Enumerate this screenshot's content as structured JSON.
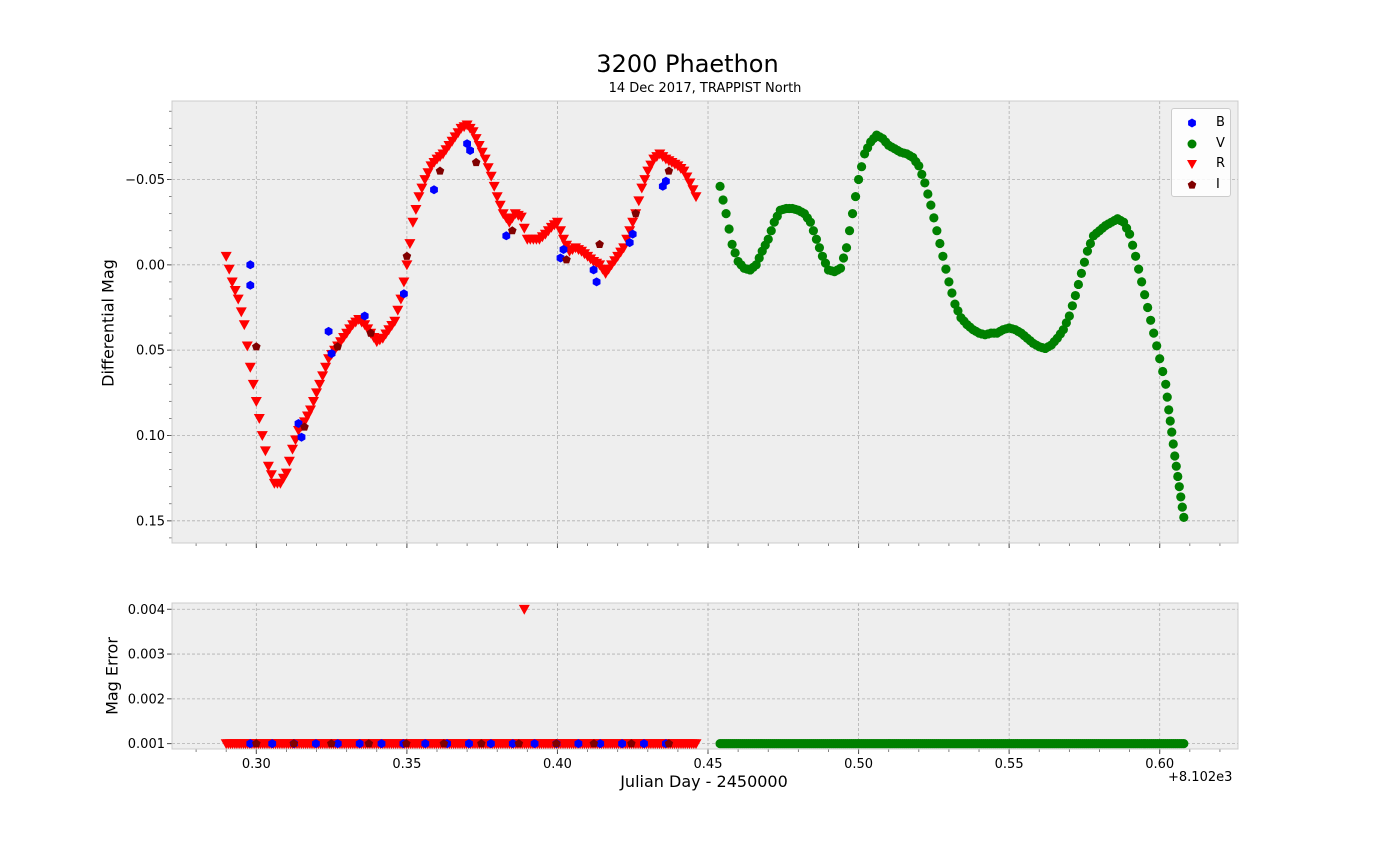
{
  "figure": {
    "title": "3200 Phaethon",
    "subtitle": "14 Dec 2017, TRAPPIST North",
    "xlabel": "Julian Day - 2450000",
    "x_offset_label": "+8.102e3"
  },
  "chart_data": [
    {
      "type": "scatter",
      "title": "3200 Phaethon",
      "subtitle": "14 Dec 2017, TRAPPIST North",
      "xlabel": "Julian Day - 2450000",
      "ylabel": "Differential  Mag",
      "x_offset": 8102,
      "xlim": [
        0.272,
        0.626
      ],
      "ylim": [
        0.163,
        -0.096
      ],
      "y_inverted": true,
      "xticks": [
        "0.30",
        "0.35",
        "0.40",
        "0.45",
        "0.50",
        "0.55",
        "0.60"
      ],
      "yticks": [
        "−0.05",
        "0.00",
        "0.05",
        "0.10",
        "0.15"
      ],
      "ytick_values": [
        -0.05,
        0.0,
        0.05,
        0.1,
        0.15
      ],
      "grid": true,
      "legend": "top-right",
      "series": [
        {
          "name": "B",
          "color": "#0000ff",
          "marker": "hexagon",
          "x": [
            0.298,
            0.298,
            0.314,
            0.315,
            0.324,
            0.325,
            0.336,
            0.349,
            0.359,
            0.37,
            0.371,
            0.383,
            0.401,
            0.402,
            0.412,
            0.413,
            0.424,
            0.425,
            0.435,
            0.436
          ],
          "y": [
            0.0,
            0.012,
            0.093,
            0.101,
            0.039,
            0.052,
            0.03,
            0.017,
            -0.044,
            -0.071,
            -0.067,
            -0.017,
            -0.004,
            -0.009,
            0.003,
            0.01,
            -0.013,
            -0.018,
            -0.046,
            -0.049
          ]
        },
        {
          "name": "V",
          "color": "#008000",
          "marker": "circle",
          "x": [
            0.454,
            0.456,
            0.458,
            0.46,
            0.462,
            0.464,
            0.466,
            0.468,
            0.47,
            0.472,
            0.474,
            0.476,
            0.478,
            0.48,
            0.482,
            0.484,
            0.486,
            0.488,
            0.49,
            0.492,
            0.494,
            0.496,
            0.498,
            0.5,
            0.502,
            0.504,
            0.506,
            0.508,
            0.51,
            0.512,
            0.514,
            0.516,
            0.518,
            0.52,
            0.522,
            0.524,
            0.526,
            0.528,
            0.53,
            0.532,
            0.534,
            0.536,
            0.538,
            0.54,
            0.542,
            0.544,
            0.546,
            0.548,
            0.55,
            0.552,
            0.554,
            0.556,
            0.558,
            0.56,
            0.562,
            0.564,
            0.566,
            0.568,
            0.57,
            0.572,
            0.574,
            0.576,
            0.578,
            0.58,
            0.582,
            0.584,
            0.586,
            0.588,
            0.59,
            0.592,
            0.594,
            0.596,
            0.598,
            0.6,
            0.602,
            0.603,
            0.604,
            0.605,
            0.606,
            0.607,
            0.608
          ],
          "y": [
            -0.046,
            -0.03,
            -0.012,
            -0.002,
            0.002,
            0.003,
            0.0,
            -0.008,
            -0.015,
            -0.025,
            -0.032,
            -0.033,
            -0.033,
            -0.032,
            -0.03,
            -0.025,
            -0.015,
            -0.005,
            0.003,
            0.004,
            0.002,
            -0.01,
            -0.03,
            -0.05,
            -0.065,
            -0.072,
            -0.076,
            -0.074,
            -0.07,
            -0.068,
            -0.066,
            -0.065,
            -0.063,
            -0.058,
            -0.048,
            -0.035,
            -0.02,
            -0.005,
            0.01,
            0.023,
            0.031,
            0.035,
            0.038,
            0.04,
            0.041,
            0.04,
            0.04,
            0.038,
            0.037,
            0.038,
            0.04,
            0.043,
            0.046,
            0.048,
            0.049,
            0.047,
            0.043,
            0.038,
            0.03,
            0.018,
            0.005,
            -0.008,
            -0.017,
            -0.02,
            -0.023,
            -0.025,
            -0.027,
            -0.025,
            -0.018,
            -0.005,
            0.01,
            0.025,
            0.04,
            0.055,
            0.07,
            0.085,
            0.098,
            0.112,
            0.124,
            0.136,
            0.148
          ]
        },
        {
          "name": "R",
          "color": "#ff0000",
          "marker": "triangle-down",
          "x": [
            0.29,
            0.292,
            0.294,
            0.296,
            0.298,
            0.3,
            0.302,
            0.304,
            0.306,
            0.308,
            0.31,
            0.312,
            0.314,
            0.316,
            0.318,
            0.32,
            0.322,
            0.324,
            0.326,
            0.328,
            0.33,
            0.332,
            0.334,
            0.336,
            0.338,
            0.34,
            0.342,
            0.344,
            0.346,
            0.348,
            0.35,
            0.352,
            0.354,
            0.356,
            0.358,
            0.36,
            0.362,
            0.364,
            0.366,
            0.368,
            0.37,
            0.372,
            0.374,
            0.376,
            0.378,
            0.38,
            0.382,
            0.384,
            0.386,
            0.388,
            0.39,
            0.392,
            0.394,
            0.396,
            0.398,
            0.4,
            0.402,
            0.404,
            0.406,
            0.408,
            0.41,
            0.412,
            0.414,
            0.416,
            0.418,
            0.42,
            0.422,
            0.424,
            0.426,
            0.428,
            0.43,
            0.432,
            0.434,
            0.436,
            0.438,
            0.44,
            0.442,
            0.444,
            0.446
          ],
          "y": [
            -0.005,
            0.01,
            0.02,
            0.035,
            0.06,
            0.08,
            0.1,
            0.118,
            0.128,
            0.128,
            0.122,
            0.108,
            0.097,
            0.092,
            0.085,
            0.075,
            0.065,
            0.055,
            0.05,
            0.045,
            0.04,
            0.035,
            0.032,
            0.035,
            0.04,
            0.045,
            0.043,
            0.038,
            0.033,
            0.02,
            0.0,
            -0.025,
            -0.04,
            -0.05,
            -0.058,
            -0.062,
            -0.065,
            -0.07,
            -0.075,
            -0.08,
            -0.082,
            -0.078,
            -0.07,
            -0.062,
            -0.052,
            -0.04,
            -0.03,
            -0.025,
            -0.03,
            -0.028,
            -0.015,
            -0.015,
            -0.015,
            -0.018,
            -0.022,
            -0.025,
            -0.015,
            -0.008,
            -0.01,
            -0.008,
            -0.005,
            -0.002,
            0.0,
            0.005,
            0.0,
            -0.005,
            -0.01,
            -0.02,
            -0.03,
            -0.045,
            -0.055,
            -0.062,
            -0.065,
            -0.062,
            -0.06,
            -0.058,
            -0.055,
            -0.048,
            -0.04
          ]
        },
        {
          "name": "I",
          "color": "#800000",
          "marker": "pentagon",
          "x": [
            0.3,
            0.316,
            0.327,
            0.338,
            0.35,
            0.361,
            0.373,
            0.385,
            0.403,
            0.414,
            0.426,
            0.437
          ],
          "y": [
            0.048,
            0.095,
            0.048,
            0.04,
            -0.005,
            -0.055,
            -0.06,
            -0.02,
            -0.003,
            -0.012,
            -0.03,
            -0.055
          ]
        }
      ]
    },
    {
      "type": "scatter",
      "xlabel": "Julian Day - 2450000",
      "ylabel": "Mag Error",
      "x_offset": 8102,
      "xlim": [
        0.272,
        0.626
      ],
      "ylim": [
        0.00088,
        0.00414
      ],
      "xticks": [
        "0.30",
        "0.35",
        "0.40",
        "0.45",
        "0.50",
        "0.55",
        "0.60"
      ],
      "yticks": [
        "0.001",
        "0.002",
        "0.003",
        "0.004"
      ],
      "ytick_values": [
        0.001,
        0.002,
        0.003,
        0.004
      ],
      "grid": true,
      "series": [
        {
          "name": "B",
          "color": "#0000ff",
          "marker": "hexagon",
          "x_range": [
            0.298,
            0.436
          ],
          "count": 20,
          "value": 0.001
        },
        {
          "name": "V",
          "color": "#008000",
          "marker": "circle",
          "x_range": [
            0.454,
            0.608
          ],
          "count": 230,
          "value": 0.001
        },
        {
          "name": "R",
          "color": "#ff0000",
          "marker": "triangle-down",
          "x_range": [
            0.29,
            0.446
          ],
          "count": 220,
          "value": 0.001,
          "outlier": {
            "x": 0.389,
            "y": 0.004
          }
        },
        {
          "name": "I",
          "color": "#800000",
          "marker": "pentagon",
          "x_range": [
            0.3,
            0.437
          ],
          "count": 12,
          "value": 0.001
        }
      ]
    }
  ]
}
